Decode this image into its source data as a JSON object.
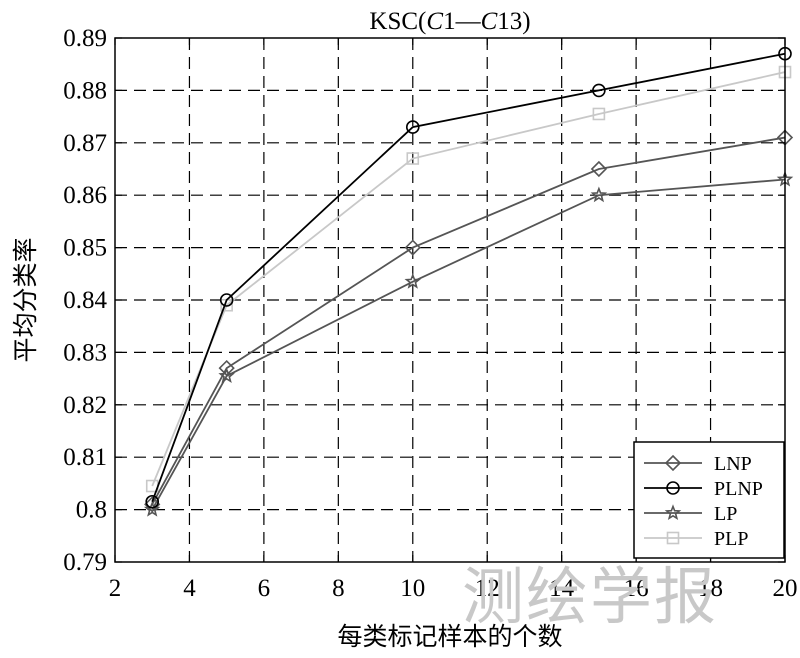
{
  "chart_data": {
    "type": "line",
    "title_parts": [
      {
        "text": "KSC(",
        "italic": false
      },
      {
        "text": "C",
        "italic": true
      },
      {
        "text": "1—",
        "italic": false
      },
      {
        "text": "C",
        "italic": true
      },
      {
        "text": "13)",
        "italic": false
      }
    ],
    "xlabel": "每类标记样本的个数",
    "ylabel": "平均分类率",
    "xlim": [
      2,
      20
    ],
    "ylim": [
      0.79,
      0.89
    ],
    "xticks": [
      2,
      4,
      6,
      8,
      10,
      12,
      14,
      16,
      18,
      20
    ],
    "yticks": [
      0.79,
      0.8,
      0.81,
      0.82,
      0.83,
      0.84,
      0.85,
      0.86,
      0.87,
      0.88,
      0.89
    ],
    "ytick_labels": [
      "0.79",
      "0.8",
      "0.81",
      "0.82",
      "0.83",
      "0.84",
      "0.85",
      "0.86",
      "0.87",
      "0.88",
      "0.89"
    ],
    "grid": true,
    "legend_position": "bottom-right",
    "x": [
      3,
      5,
      10,
      15,
      20
    ],
    "series": [
      {
        "name": "LNP",
        "values": [
          0.801,
          0.827,
          0.85,
          0.865,
          0.871
        ],
        "color": "#555555",
        "marker": "diamond"
      },
      {
        "name": "PLNP",
        "values": [
          0.8015,
          0.84,
          0.873,
          0.88,
          0.887
        ],
        "color": "#000000",
        "marker": "circle"
      },
      {
        "name": "LP",
        "values": [
          0.8,
          0.8255,
          0.8435,
          0.86,
          0.863
        ],
        "color": "#555555",
        "marker": "star"
      },
      {
        "name": "PLP",
        "values": [
          0.8045,
          0.839,
          0.867,
          0.8755,
          0.8835
        ],
        "color": "#c8c8c8",
        "marker": "square"
      }
    ]
  },
  "watermark": "测绘学报"
}
